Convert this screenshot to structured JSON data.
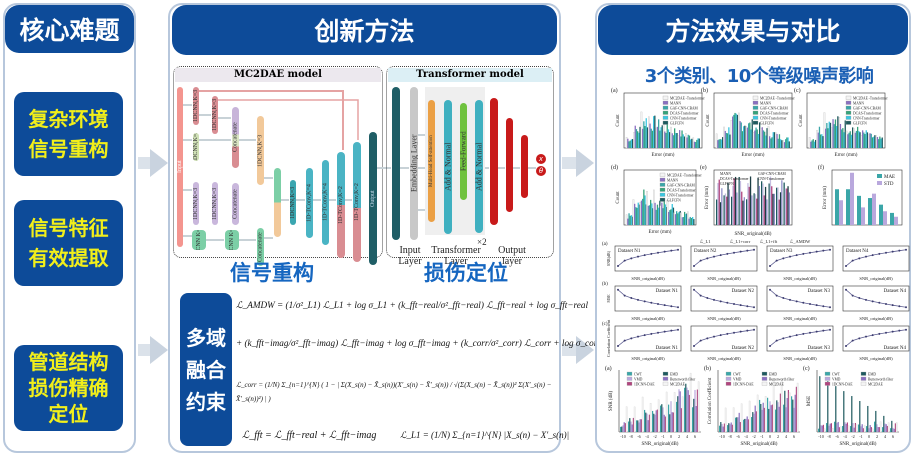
{
  "left": {
    "title": "核心难题",
    "boxes": [
      [
        "复杂环境",
        "信号重构"
      ],
      [
        "信号特征",
        "有效提取"
      ],
      [
        "管道结构",
        "损伤精确",
        "定位"
      ]
    ]
  },
  "middle": {
    "title": "创新方法",
    "mc2dae": {
      "title": "MC2DAE model",
      "blocks": {
        "input": "Input",
        "c1": "1DCNN,K=3",
        "c2": "1DCNN,K=3",
        "c3": "Concatenate",
        "c4": "1DCNN,K=5",
        "c5": "1DCNN,K=3",
        "c6": "1DCNN,K=3",
        "c7": "Concatenate",
        "c8": "2DCNN K=3,3",
        "c9": "2DCNN K=4,4",
        "c10": "Concatenate",
        "c11": "1DCNN,K=3",
        "c12": "1DCNN,K=3",
        "c13": "1D-TConv,K=4",
        "c14": "1D-TConv,K=4",
        "c15": "1D-TConv,K=2",
        "c16": "1D-TConv,K=2",
        "out": "Output"
      }
    },
    "transformer": {
      "title": "Transformer model",
      "blocks": {
        "emb": "Embedding Layer",
        "mha": "Multi-Head Self-attention",
        "an1": "Add & Normal",
        "ff": "Feed-Forward",
        "an2": "Add & Normal"
      },
      "repeat": "×2",
      "layers": [
        "Input Layer",
        "Transformer Layer",
        "Output layer"
      ],
      "outputs": [
        "x",
        "θ"
      ]
    },
    "label_recon": "信号重构",
    "label_loc": "损伤定位",
    "constraint": [
      "多域",
      "融合",
      "约束"
    ],
    "formulas": {
      "amdw1": "ℒ_AMDW = (1/σ²_L1) ℒ_L1 + log σ_L1 + (k_fft−real/σ²_fft−real) ℒ_fft−real + log σ_fft−real",
      "amdw2": "+ (k_fft−imag/σ²_fft−imag) ℒ_fft−imag + log σ_fft−imag + (k_corr/σ²_corr) ℒ_corr + log σ_corr",
      "corr": "ℒ_corr = (1/N) Σ_{n=1}^{N} ( 1 − | Σ(X_s(n) − X̄_s(n))(X′_s(n) − X̄′_s(n)) / √(Σ(X_s(n) − X̄_s(n))² Σ(X′_s(n) − X̄′_s(n))²) | )",
      "fft": "ℒ_fft = ℒ_fft−real + ℒ_fft−imag",
      "l1": "ℒ_L1 = (1/N) Σ_{n=1}^{N} |X_s(n) − X′_s(n)|"
    }
  },
  "right": {
    "title": "方法效果与对比",
    "subtitle": "3个类别、10个等级噪声影响",
    "hist": {
      "panels": [
        "(a)",
        "(b)",
        "(c)",
        "(d)"
      ],
      "xlabel": "Error (mm)",
      "ylabel": "Count",
      "legend": [
        "MC2DAE -Transformer",
        "MANN",
        "GAF-CNN-CBAM",
        "DCAS-Transformer",
        "CNN-Transformer",
        "GLFCFN"
      ]
    },
    "e": {
      "panel": "(e)",
      "ylabel": "Error (mm)",
      "xlabel": "SNR_original(dB)",
      "legend": [
        "MANN",
        "GAF-CNN-CBAM",
        "DCAS-Transformer",
        "CNN-Transformer",
        "GLFCFN"
      ]
    },
    "f": {
      "panel": "(f)",
      "ylabel": "Error (mm)",
      "legend": [
        "MAE",
        "STD"
      ]
    },
    "lines": {
      "rows": [
        {
          "panel": "(a)",
          "ylabel": "SNR(dB)"
        },
        {
          "panel": "(b)",
          "ylabel": "MSE"
        },
        {
          "panel": "(c)",
          "ylabel": "Correlation Coefficient"
        }
      ],
      "datasets": [
        "Dataset N1",
        "Dataset N2",
        "Dataset N3",
        "Dataset N4"
      ],
      "xlabel": "SNR_original(dB)",
      "legend": [
        "ℒ_L1",
        "ℒ_L1+corr",
        "ℒ_L1+fft",
        "ℒ_AMDW"
      ]
    },
    "bottom": {
      "panels": [
        {
          "panel": "(a)",
          "ylabel": "SNR (dB)"
        },
        {
          "panel": "(b)",
          "ylabel": "Correlation Coefficient"
        },
        {
          "panel": "(c)",
          "ylabel": "MSE"
        }
      ],
      "xlabel": "SNR_original(dB)",
      "xticks": [
        "-10",
        "-8",
        "-6",
        "-4",
        "-2",
        "-1",
        "0",
        "2",
        "4",
        "6"
      ],
      "legend": [
        "CWT",
        "EMD",
        "VMD",
        "Butterworth filter",
        "1DCNN-DAE",
        "MC2DAE"
      ]
    },
    "colors": {
      "teal": "#3aa6a8",
      "dark": "#1e5a5e",
      "purple": "#8a6fc0",
      "lilac": "#b9a8dd",
      "magenta": "#b0457e",
      "white": "#f4f4f4",
      "cyan": "#3cc6e0",
      "green": "#36a27a"
    }
  }
}
